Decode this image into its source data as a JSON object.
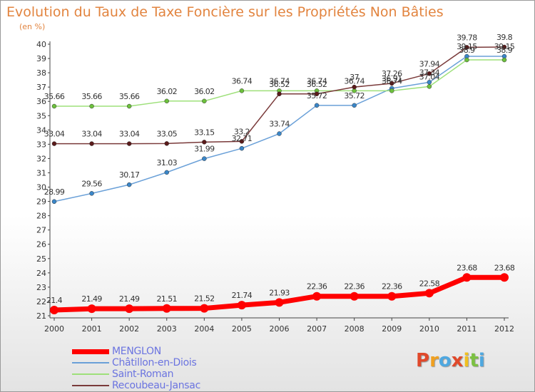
{
  "title": "Evolution du Taux de Taxe Foncière sur les Propriétés Non Bâties",
  "unit_label": "(en %)",
  "logo": {
    "text": "Proxiti",
    "letters": [
      {
        "ch": "P",
        "color": "#e0492b"
      },
      {
        "ch": "r",
        "color": "#f0a020"
      },
      {
        "ch": "o",
        "color": "#4fa8e0"
      },
      {
        "ch": "x",
        "color": "#e0492b"
      },
      {
        "ch": "i",
        "color": "#f0c020"
      },
      {
        "ch": "t",
        "color": "#7cc142"
      },
      {
        "ch": "i",
        "color": "#4fa8e0"
      }
    ]
  },
  "chart_data": {
    "type": "line",
    "x": [
      "2000",
      "2001",
      "2002",
      "2003",
      "2004",
      "2005",
      "2006",
      "2007",
      "2008",
      "2009",
      "2010",
      "2011",
      "2012"
    ],
    "ylim": [
      21,
      40
    ],
    "yticks": [
      21,
      22,
      23,
      24,
      25,
      26,
      27,
      28,
      29,
      30,
      31,
      32,
      33,
      34,
      35,
      36,
      37,
      38,
      39,
      40
    ],
    "grid": false,
    "legend_position": "bottom-left",
    "series": [
      {
        "name": "MENGLON",
        "color": "#ff0000",
        "marker_color": "#ff0000",
        "thick": true,
        "values": [
          21.4,
          21.49,
          21.49,
          21.51,
          21.52,
          21.74,
          21.93,
          22.36,
          22.36,
          22.36,
          22.58,
          23.68,
          23.68
        ],
        "labels": [
          "21.4",
          "21.49",
          "21.49",
          "21.51",
          "21.52",
          "21.74",
          "21.93",
          "22.36",
          "22.36",
          "22.36",
          "22.58",
          "23.68",
          "23.68"
        ]
      },
      {
        "name": "Châtillon-en-Diois",
        "color": "#6aa0d8",
        "marker_color": "#3a86c8",
        "thick": false,
        "values": [
          28.99,
          29.56,
          30.17,
          31.03,
          31.99,
          32.71,
          33.74,
          35.72,
          35.72,
          36.91,
          37.34,
          39.15,
          39.15
        ],
        "labels": [
          "28.99",
          "29.56",
          "30.17",
          "31.03",
          "31.99",
          "32.71",
          "33.74",
          "35.72",
          "35.72",
          "36.91",
          "37.34",
          "39.15",
          "39.15"
        ]
      },
      {
        "name": "Saint-Roman",
        "color": "#9ee07a",
        "marker_color": "#6cc03c",
        "thick": false,
        "values": [
          35.66,
          35.66,
          35.66,
          36.02,
          36.02,
          36.74,
          36.74,
          36.74,
          36.74,
          36.74,
          37.04,
          38.9,
          38.9
        ],
        "labels": [
          "35.66",
          "35.66",
          "35.66",
          "36.02",
          "36.02",
          "36.74",
          "36.74",
          "36.74",
          "36.74",
          "36.74",
          "37.04",
          "38.9",
          "38.9"
        ]
      },
      {
        "name": "Recoubeau-Jansac",
        "color": "#7a3a3a",
        "marker_color": "#5a1a1a",
        "thick": false,
        "values": [
          33.04,
          33.04,
          33.04,
          33.05,
          33.15,
          33.2,
          36.52,
          36.52,
          37.0,
          37.26,
          37.94,
          39.78,
          39.8
        ],
        "labels": [
          "33.04",
          "33.04",
          "33.04",
          "33.05",
          "33.15",
          "33.2",
          "36.52",
          "36.52",
          "37",
          "37.26",
          "37.94",
          "39.78",
          "39.8"
        ]
      }
    ]
  }
}
